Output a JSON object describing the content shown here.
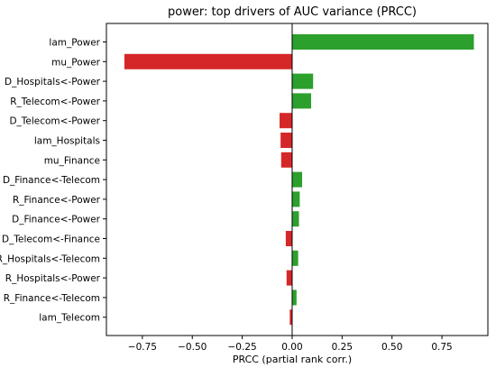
{
  "chart_data": {
    "type": "bar",
    "orientation": "horizontal",
    "title": "power: top drivers of AUC variance (PRCC)",
    "xlabel": "PRCC (partial rank corr.)",
    "ylabel": "",
    "xlim": [
      -0.93,
      0.98
    ],
    "xticks": [
      -0.75,
      -0.5,
      -0.25,
      0.0,
      0.25,
      0.5,
      0.75
    ],
    "xtick_labels": [
      "−0.75",
      "−0.50",
      "−0.25",
      "0.00",
      "0.25",
      "0.50",
      "0.75"
    ],
    "grid": false,
    "legend": "none",
    "zero_line": true,
    "positive_color": "#2ca02c",
    "negative_color": "#d62728",
    "categories": [
      "lam_Power",
      "mu_Power",
      "D_Hospitals<-Power",
      "R_Telecom<-Power",
      "D_Telecom<-Power",
      "lam_Hospitals",
      "mu_Finance",
      "D_Finance<-Telecom",
      "R_Finance<-Power",
      "D_Finance<-Power",
      "D_Telecom<-Finance",
      "R_Hospitals<-Telecom",
      "R_Hospitals<-Power",
      "R_Finance<-Telecom",
      "lam_Telecom"
    ],
    "values": [
      0.91,
      -0.84,
      0.105,
      0.095,
      -0.063,
      -0.058,
      -0.055,
      0.05,
      0.038,
      0.034,
      -0.032,
      0.03,
      -0.028,
      0.022,
      -0.012
    ]
  }
}
